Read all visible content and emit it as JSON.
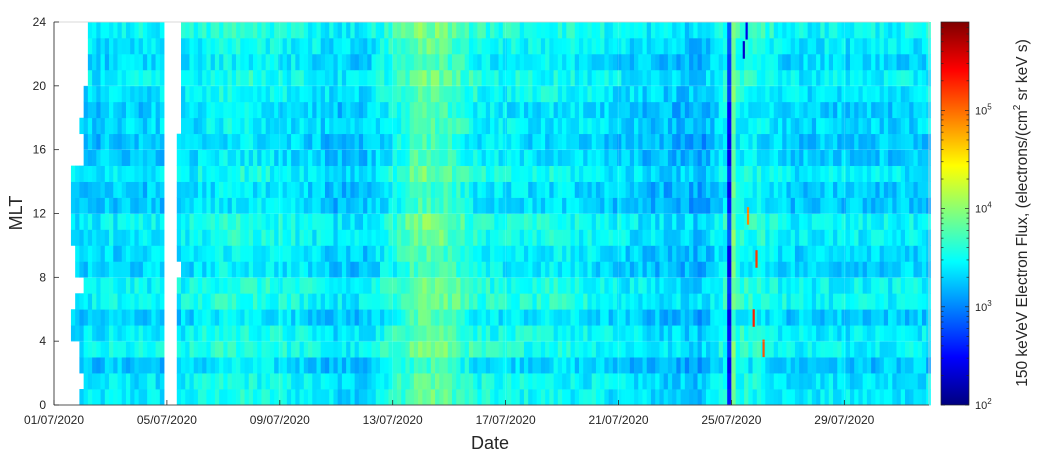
{
  "chart_data": {
    "type": "heatmap",
    "xlabel": "Date",
    "ylabel": "MLT",
    "x_tick_labels": [
      "01/07/2020",
      "05/07/2020",
      "09/07/2020",
      "13/07/2020",
      "17/07/2020",
      "21/07/2020",
      "25/07/2020",
      "29/07/2020"
    ],
    "x_tick_days": [
      1,
      5,
      9,
      13,
      17,
      21,
      25,
      29
    ],
    "xlim_days": [
      1,
      32
    ],
    "y_ticks": [
      0,
      4,
      8,
      12,
      16,
      20,
      24
    ],
    "ylim": [
      0,
      24
    ],
    "mlt_bins": 24,
    "colorbar": {
      "label": "150 keVeV Electron Flux, (electrons/(cm² sr keV s)",
      "label_parts": [
        "150 keVeV Electron Flux, (electrons/(cm",
        "2",
        " sr keV s)"
      ],
      "scale": "log",
      "range_log10": [
        2,
        5.9
      ],
      "tick_base": "10",
      "tick_exponents": [
        "2",
        "3",
        "4",
        "5"
      ],
      "tick_log10": [
        2,
        3,
        4,
        5
      ],
      "colormap": "jet",
      "colormap_stops": [
        "#00007f",
        "#0000ff",
        "#007fff",
        "#00ffff",
        "#7fff7f",
        "#ffff00",
        "#ff7f00",
        "#ff0000",
        "#7f0000"
      ]
    },
    "data_gaps": [
      {
        "start_day": 1.0,
        "end_mlt_profile": "left gap, ends near 02/07-04/07 depending on MLT"
      },
      {
        "start_day": 4.9,
        "end_day": 5.3
      }
    ],
    "daily_mean_log10_flux": [
      3.3,
      3.3,
      3.35,
      3.35,
      3.35,
      3.4,
      3.5,
      3.5,
      3.45,
      3.4,
      3.3,
      3.3,
      3.55,
      3.85,
      3.75,
      3.5,
      3.45,
      3.45,
      3.45,
      3.4,
      3.35,
      3.3,
      3.25,
      3.2,
      3.55,
      3.5,
      3.35,
      3.35,
      3.35,
      3.35,
      3.35
    ],
    "events": [
      {
        "date": "14/07/2020",
        "description": "enhanced flux band (greenish)"
      },
      {
        "date": "25/07/2020",
        "description": "dropout then enhancement with isolated peaks above 10^5"
      }
    ]
  }
}
